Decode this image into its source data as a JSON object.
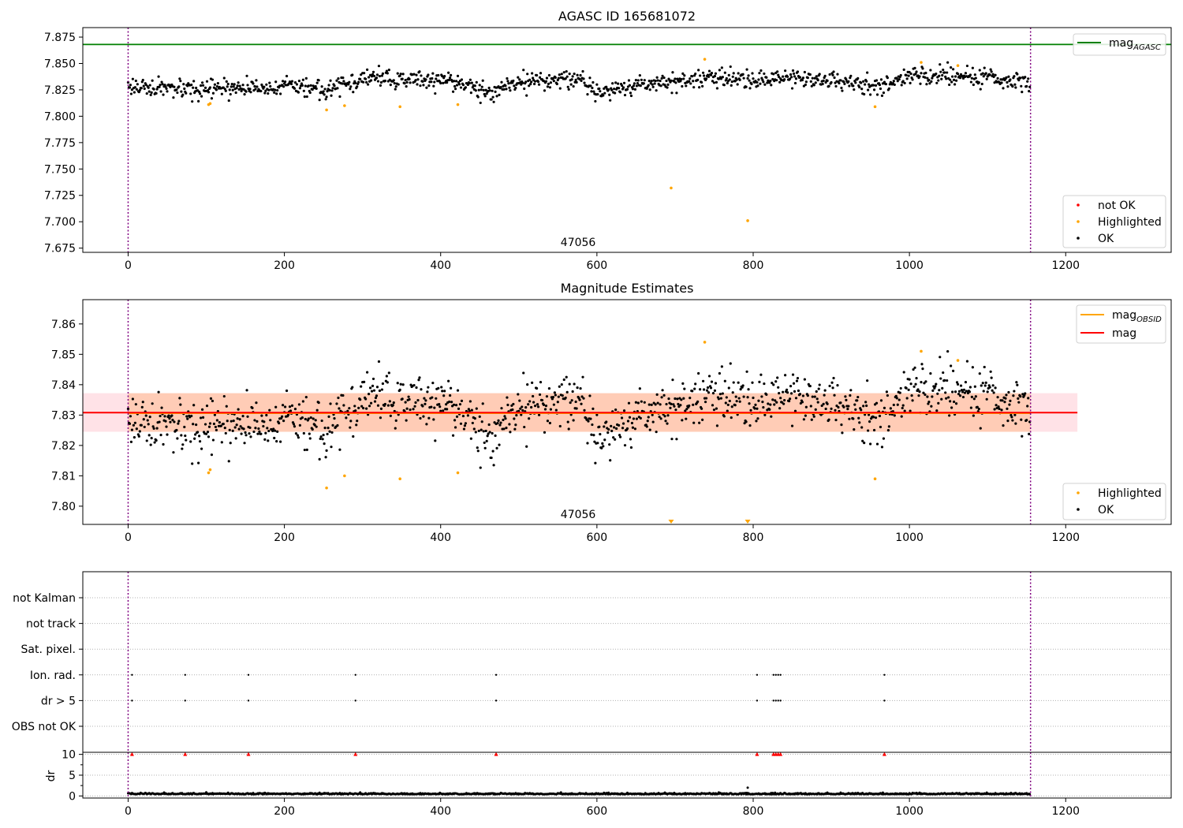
{
  "chart_data": [
    {
      "type": "scatter",
      "title": "AGASC ID 165681072",
      "xlabel": "",
      "ylabel": "",
      "xlim": [
        -58,
        1335
      ],
      "ylim": [
        7.671,
        7.884
      ],
      "xticks": [
        0,
        200,
        400,
        600,
        800,
        1000,
        1200
      ],
      "yticks": [
        7.675,
        7.7,
        7.725,
        7.75,
        7.775,
        7.8,
        7.825,
        7.85,
        7.875
      ],
      "ytick_labels": [
        "7.675",
        "7.700",
        "7.725",
        "7.750",
        "7.775",
        "7.800",
        "7.825",
        "7.850",
        "7.875"
      ],
      "grid": false,
      "obsid_boundaries": [
        0,
        1155
      ],
      "obsid_label": "47056",
      "hlines": [
        {
          "name": "mag_AGASC",
          "y": 7.868,
          "color": "#008000"
        }
      ],
      "legend_lines": {
        "placement": "top-right",
        "items": [
          {
            "label": "mag",
            "sub": "AGASC",
            "color": "#008000"
          }
        ]
      },
      "legend_points": {
        "placement": "lower-right",
        "items": [
          {
            "label": "not OK",
            "color": "#ff0000"
          },
          {
            "label": "Highlighted",
            "color": "#ffa500"
          },
          {
            "label": "OK",
            "color": "#000000"
          }
        ]
      },
      "series": [
        {
          "name": "OK",
          "color": "#000000",
          "baseline": 7.829,
          "noise": 0.006,
          "n": 1155,
          "trend": [
            [
              0,
              7.829
            ],
            [
              90,
              7.823
            ],
            [
              110,
              7.826
            ],
            [
              200,
              7.828
            ],
            [
              250,
              7.826
            ],
            [
              310,
              7.836
            ],
            [
              420,
              7.833
            ],
            [
              460,
              7.823
            ],
            [
              500,
              7.832
            ],
            [
              580,
              7.836
            ],
            [
              600,
              7.822
            ],
            [
              650,
              7.83
            ],
            [
              720,
              7.834
            ],
            [
              760,
              7.838
            ],
            [
              800,
              7.833
            ],
            [
              830,
              7.838
            ],
            [
              900,
              7.834
            ],
            [
              960,
              7.828
            ],
            [
              1000,
              7.84
            ],
            [
              1060,
              7.838
            ],
            [
              1100,
              7.836
            ],
            [
              1155,
              7.832
            ]
          ]
        },
        {
          "name": "Highlighted",
          "color": "#ffa500",
          "x": [
            103,
            105,
            254,
            277,
            348,
            422,
            695,
            738,
            793,
            956,
            1015,
            1062
          ],
          "y": [
            7.811,
            7.812,
            7.806,
            7.81,
            7.809,
            7.811,
            7.732,
            7.854,
            7.701,
            7.809,
            7.851,
            7.848
          ]
        },
        {
          "name": "not OK",
          "color": "#ff0000",
          "x": [],
          "y": []
        }
      ]
    },
    {
      "type": "scatter",
      "title": "Magnitude Estimates",
      "xlabel": "",
      "ylabel": "",
      "xlim": [
        -58,
        1335
      ],
      "ylim": [
        7.794,
        7.868
      ],
      "xticks": [
        0,
        200,
        400,
        600,
        800,
        1000,
        1200
      ],
      "yticks": [
        7.8,
        7.81,
        7.82,
        7.83,
        7.84,
        7.85,
        7.86
      ],
      "ytick_labels": [
        "7.80",
        "7.81",
        "7.82",
        "7.83",
        "7.84",
        "7.85",
        "7.86"
      ],
      "grid": false,
      "obsid_boundaries": [
        0,
        1155
      ],
      "obsid_label": "47056",
      "bands": [
        {
          "name": "mag_band",
          "x_range": [
            -58,
            1215
          ],
          "y_range": [
            7.8245,
            7.8372
          ],
          "color": "#ff9fae"
        },
        {
          "name": "mag_OBSID_band",
          "x_range": [
            0,
            1155
          ],
          "y_range": [
            7.8245,
            7.8372
          ],
          "color": "#ffb27a"
        }
      ],
      "hlines": [
        {
          "name": "mag_OBSID",
          "y": 7.8306,
          "x_range": [
            0,
            1155
          ],
          "color": "#ffa500"
        },
        {
          "name": "mag",
          "y": 7.8308,
          "x_range": [
            -58,
            1215
          ],
          "color": "#ff0000"
        }
      ],
      "legend_lines": {
        "placement": "top-right",
        "items": [
          {
            "label": "mag",
            "sub": "OBSID",
            "color": "#ffa500"
          },
          {
            "label": "mag",
            "sub": "",
            "color": "#ff0000"
          }
        ]
      },
      "legend_points": {
        "placement": "lower-right",
        "items": [
          {
            "label": "Highlighted",
            "color": "#ffa500"
          },
          {
            "label": "OK",
            "color": "#000000"
          }
        ]
      },
      "series": [
        {
          "name": "OK",
          "color": "#000000",
          "baseline": 7.829,
          "noise": 0.006,
          "n": 1155,
          "trend": [
            [
              0,
              7.829
            ],
            [
              90,
              7.823
            ],
            [
              110,
              7.826
            ],
            [
              200,
              7.828
            ],
            [
              250,
              7.826
            ],
            [
              310,
              7.836
            ],
            [
              420,
              7.833
            ],
            [
              460,
              7.823
            ],
            [
              500,
              7.832
            ],
            [
              580,
              7.836
            ],
            [
              600,
              7.822
            ],
            [
              650,
              7.83
            ],
            [
              720,
              7.834
            ],
            [
              760,
              7.838
            ],
            [
              800,
              7.833
            ],
            [
              830,
              7.838
            ],
            [
              900,
              7.834
            ],
            [
              960,
              7.828
            ],
            [
              1000,
              7.84
            ],
            [
              1060,
              7.838
            ],
            [
              1100,
              7.836
            ],
            [
              1155,
              7.832
            ]
          ]
        },
        {
          "name": "Highlighted",
          "color": "#ffa500",
          "x": [
            103,
            105,
            254,
            277,
            348,
            422,
            738,
            956,
            1015,
            1062
          ],
          "y": [
            7.811,
            7.812,
            7.806,
            7.81,
            7.809,
            7.811,
            7.854,
            7.809,
            7.851,
            7.848
          ]
        },
        {
          "name": "Highlighted (off axis)",
          "color": "#ffa500",
          "marker": "triangle-down",
          "x": [
            695,
            793
          ],
          "y": [
            7.794,
            7.794
          ]
        }
      ]
    },
    {
      "type": "scatter",
      "title": "",
      "xlabel": "",
      "ylabel": "",
      "xlim": [
        -58,
        1335
      ],
      "xticks": [],
      "categories": [
        "OBS not OK",
        "dr > 5",
        "Ion. rad.",
        "Sat. pixel.",
        "not track",
        "not Kalman"
      ],
      "grid": true,
      "obsid_boundaries": [
        0,
        1155
      ],
      "series": [
        {
          "name": "Ion. rad.",
          "color": "#000000",
          "x": [
            5,
            73,
            154,
            291,
            471,
            805,
            826,
            829,
            832,
            835,
            968
          ]
        },
        {
          "name": "dr > 5",
          "color": "#000000",
          "x": [
            5,
            73,
            154,
            291,
            471,
            805,
            826,
            829,
            832,
            835,
            968
          ]
        }
      ]
    },
    {
      "type": "scatter",
      "title": "",
      "xlabel": "",
      "ylabel": "dr",
      "xlim": [
        -58,
        1335
      ],
      "ylim": [
        -0.5,
        10.5
      ],
      "xticks": [
        0,
        200,
        400,
        600,
        800,
        1000,
        1200
      ],
      "yticks": [
        0,
        5,
        10
      ],
      "grid": true,
      "obsid_boundaries": [
        0,
        1155
      ],
      "series": [
        {
          "name": "dr",
          "color": "#000000",
          "baseline": 0.4,
          "noise": 0.25,
          "n": 1155
        },
        {
          "name": "dr outlier",
          "color": "#000000",
          "x": [
            793
          ],
          "y": [
            2
          ]
        },
        {
          "name": "dr clipped",
          "color": "#ff0000",
          "marker": "triangle-up",
          "x": [
            5,
            73,
            154,
            291,
            471,
            805,
            826,
            829,
            832,
            835,
            968
          ],
          "y": [
            10,
            10,
            10,
            10,
            10,
            10,
            10,
            10,
            10,
            10,
            10
          ]
        }
      ]
    }
  ]
}
